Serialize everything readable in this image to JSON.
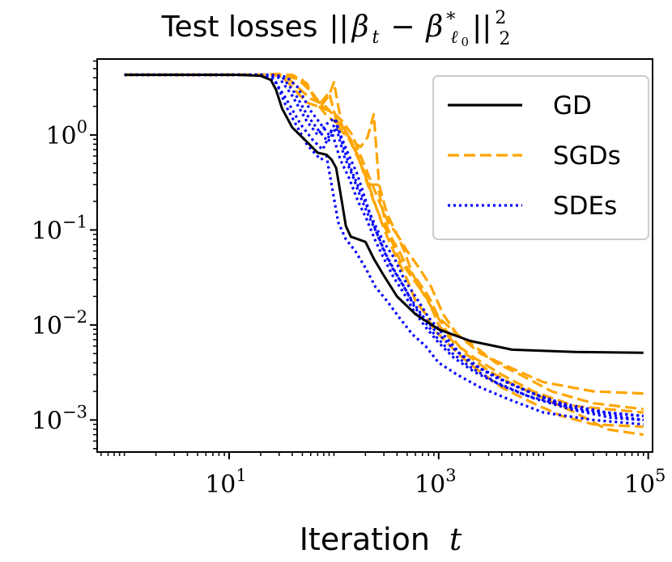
{
  "chart_data": {
    "type": "line",
    "title": "Test losses ||β_t − β*_ℓ0||²₂",
    "title_text": "Test losses",
    "title_math": {
      "beta": "β",
      "t": "t",
      "minus": "−",
      "star": "*",
      "ell": "ℓ",
      "zero": "0",
      "two": "2",
      "bars": "||"
    },
    "xlabel": "Iteration",
    "xlabel_var": "t",
    "ylabel": "",
    "xscale": "log",
    "yscale": "log",
    "xlim": [
      0.55,
      110000
    ],
    "ylim": [
      0.00046,
      6.3
    ],
    "x_ticks": [
      {
        "value": 10,
        "base": "10",
        "exp": "1"
      },
      {
        "value": 1000,
        "base": "10",
        "exp": "3"
      },
      {
        "value": 100000,
        "base": "10",
        "exp": "5"
      }
    ],
    "y_ticks": [
      {
        "value": 1,
        "base": "10",
        "exp": "0"
      },
      {
        "value": 0.1,
        "base": "10",
        "exp": "−1"
      },
      {
        "value": 0.01,
        "base": "10",
        "exp": "−2"
      },
      {
        "value": 0.001,
        "base": "10",
        "exp": "−3"
      }
    ],
    "legend": [
      {
        "label": "GD",
        "color": "#000000",
        "style": "solid"
      },
      {
        "label": "SGDs",
        "color": "#ffa500",
        "style": "dashed"
      },
      {
        "label": "SDEs",
        "color": "#0000ff",
        "style": "dotted"
      }
    ],
    "legend_position": "top-right",
    "series": [
      {
        "name": "GD",
        "group": "GD",
        "color": "#000000",
        "style": "solid",
        "x": [
          1,
          12,
          20,
          25,
          28,
          32,
          40,
          55,
          70,
          85,
          95,
          105,
          115,
          130,
          145,
          170,
          200,
          240,
          300,
          400,
          600,
          1000,
          2000,
          5000,
          20000,
          90000
        ],
        "y": [
          4.3,
          4.3,
          4.2,
          3.8,
          3.0,
          1.9,
          1.2,
          0.85,
          0.65,
          0.62,
          0.55,
          0.45,
          0.25,
          0.11,
          0.085,
          0.08,
          0.075,
          0.05,
          0.033,
          0.02,
          0.013,
          0.009,
          0.0068,
          0.0055,
          0.0052,
          0.0051
        ]
      },
      {
        "name": "SGD 1",
        "group": "SGDs",
        "color": "#ffa500",
        "style": "dashed",
        "x": [
          1,
          20,
          30,
          40,
          55,
          70,
          90,
          110,
          140,
          180,
          220,
          260,
          310,
          360,
          420,
          500,
          620,
          800,
          1000,
          1500,
          2500,
          5000,
          10000,
          30000,
          90000
        ],
        "y": [
          4.3,
          4.3,
          4.4,
          3.2,
          2.2,
          2.0,
          2.8,
          1.2,
          0.9,
          0.5,
          0.3,
          0.3,
          0.12,
          0.08,
          0.06,
          0.04,
          0.03,
          0.02,
          0.012,
          0.008,
          0.005,
          0.0035,
          0.0025,
          0.002,
          0.0019
        ]
      },
      {
        "name": "SGD 2",
        "group": "SGDs",
        "color": "#ffa500",
        "style": "dashed",
        "x": [
          1,
          25,
          35,
          45,
          60,
          80,
          100,
          125,
          150,
          180,
          210,
          240,
          270,
          320,
          400,
          500,
          650,
          850,
          1100,
          1500,
          2200,
          3500,
          6000,
          12000,
          30000,
          90000
        ],
        "y": [
          4.3,
          4.3,
          4.1,
          3.2,
          2.4,
          2.1,
          1.6,
          1.1,
          0.85,
          0.75,
          0.95,
          1.65,
          0.3,
          0.15,
          0.09,
          0.06,
          0.04,
          0.025,
          0.013,
          0.008,
          0.006,
          0.004,
          0.003,
          0.002,
          0.0015,
          0.0013
        ]
      },
      {
        "name": "SGD 3",
        "group": "SGDs",
        "color": "#ffa500",
        "style": "dashed",
        "x": [
          1,
          30,
          45,
          60,
          75,
          90,
          100,
          120,
          145,
          170,
          200,
          240,
          290,
          350,
          420,
          520,
          650,
          800,
          1000,
          1400,
          2200,
          4000,
          8000,
          20000,
          90000
        ],
        "y": [
          4.3,
          4.3,
          3.9,
          2.9,
          2.0,
          2.6,
          3.6,
          1.2,
          0.9,
          0.6,
          0.35,
          0.2,
          0.12,
          0.08,
          0.05,
          0.035,
          0.025,
          0.018,
          0.01,
          0.0065,
          0.0045,
          0.003,
          0.002,
          0.0014,
          0.0012
        ]
      },
      {
        "name": "SGD 4",
        "group": "SGDs",
        "color": "#ffa500",
        "style": "dashed",
        "x": [
          1,
          40,
          55,
          70,
          85,
          100,
          125,
          150,
          180,
          220,
          270,
          330,
          400,
          500,
          600,
          750,
          900,
          1200,
          1700,
          2500,
          4000,
          8000,
          15000,
          30000,
          90000
        ],
        "y": [
          4.3,
          4.3,
          3.5,
          2.1,
          1.6,
          1.4,
          1.2,
          0.8,
          0.5,
          0.28,
          0.14,
          0.08,
          0.05,
          0.03,
          0.018,
          0.013,
          0.009,
          0.0065,
          0.0045,
          0.0032,
          0.0022,
          0.0015,
          0.0011,
          0.0009,
          0.00085
        ]
      },
      {
        "name": "SGD 5",
        "group": "SGDs",
        "color": "#ffa500",
        "style": "dashed",
        "x": [
          1,
          35,
          50,
          65,
          80,
          100,
          120,
          150,
          180,
          220,
          270,
          330,
          400,
          470,
          560,
          700,
          900,
          1200,
          1800,
          3000,
          5000,
          10000,
          20000,
          40000,
          90000
        ],
        "y": [
          4.3,
          4.3,
          3.8,
          2.6,
          1.9,
          1.7,
          1.4,
          1.0,
          0.6,
          0.35,
          0.2,
          0.12,
          0.09,
          0.06,
          0.035,
          0.022,
          0.014,
          0.0085,
          0.005,
          0.0033,
          0.0024,
          0.0017,
          0.0012,
          0.0008,
          0.0007
        ]
      },
      {
        "name": "SDE 1",
        "group": "SDEs",
        "color": "#0000ff",
        "style": "dotted",
        "x": [
          1,
          15,
          22,
          28,
          35,
          45,
          55,
          65,
          75,
          85,
          95,
          110,
          130,
          160,
          200,
          250,
          320,
          420,
          560,
          750,
          1000,
          1500,
          2500,
          5000,
          10000,
          30000,
          90000
        ],
        "y": [
          4.3,
          4.3,
          4.2,
          3.6,
          2.0,
          1.2,
          0.8,
          0.65,
          0.55,
          0.6,
          0.3,
          0.12,
          0.08,
          0.06,
          0.04,
          0.025,
          0.018,
          0.012,
          0.008,
          0.006,
          0.004,
          0.003,
          0.0022,
          0.0016,
          0.0012,
          0.001,
          0.0009
        ]
      },
      {
        "name": "SDE 2",
        "group": "SDEs",
        "color": "#0000ff",
        "style": "dotted",
        "x": [
          1,
          20,
          30,
          40,
          55,
          70,
          85,
          100,
          120,
          140,
          165,
          190,
          220,
          260,
          310,
          380,
          470,
          600,
          800,
          1100,
          1600,
          2500,
          4500,
          9000,
          20000,
          50000,
          90000
        ],
        "y": [
          4.3,
          4.3,
          4.0,
          2.6,
          1.4,
          1.0,
          1.3,
          1.5,
          0.9,
          0.6,
          0.4,
          0.25,
          0.15,
          0.1,
          0.07,
          0.05,
          0.03,
          0.02,
          0.012,
          0.008,
          0.005,
          0.0035,
          0.0025,
          0.0018,
          0.0013,
          0.0011,
          0.001
        ]
      },
      {
        "name": "SDE 3",
        "group": "SDEs",
        "color": "#0000ff",
        "style": "dotted",
        "x": [
          1,
          25,
          35,
          45,
          60,
          75,
          90,
          105,
          125,
          150,
          180,
          210,
          250,
          300,
          360,
          440,
          540,
          680,
          900,
          1300,
          2000,
          3500,
          7000,
          15000,
          40000,
          90000
        ],
        "y": [
          4.3,
          4.3,
          4.1,
          3.2,
          1.8,
          1.3,
          1.0,
          1.4,
          0.7,
          0.4,
          0.25,
          0.17,
          0.1,
          0.06,
          0.04,
          0.028,
          0.019,
          0.013,
          0.009,
          0.006,
          0.004,
          0.0028,
          0.002,
          0.0015,
          0.0012,
          0.0011
        ]
      },
      {
        "name": "SDE 4",
        "group": "SDEs",
        "color": "#0000ff",
        "style": "dotted",
        "x": [
          1,
          18,
          26,
          35,
          48,
          62,
          78,
          95,
          115,
          140,
          170,
          205,
          245,
          300,
          370,
          460,
          580,
          750,
          1000,
          1400,
          2200,
          4000,
          8000,
          18000,
          45000,
          90000
        ],
        "y": [
          4.3,
          4.3,
          4.0,
          2.4,
          1.3,
          0.9,
          0.7,
          1.1,
          0.55,
          0.35,
          0.2,
          0.13,
          0.08,
          0.05,
          0.032,
          0.022,
          0.014,
          0.0095,
          0.0065,
          0.0045,
          0.0032,
          0.0023,
          0.0017,
          0.0013,
          0.00105,
          0.001
        ]
      },
      {
        "name": "SDE 5",
        "group": "SDEs",
        "color": "#0000ff",
        "style": "dotted",
        "x": [
          1,
          22,
          32,
          42,
          56,
          72,
          88,
          105,
          125,
          150,
          180,
          215,
          260,
          315,
          385,
          470,
          580,
          730,
          950,
          1300,
          2000,
          3500,
          7000,
          16000,
          40000,
          90000
        ],
        "y": [
          4.3,
          4.3,
          4.1,
          2.8,
          1.6,
          1.1,
          0.85,
          1.2,
          0.6,
          0.38,
          0.22,
          0.14,
          0.09,
          0.055,
          0.036,
          0.025,
          0.016,
          0.011,
          0.0075,
          0.0052,
          0.0036,
          0.0025,
          0.0018,
          0.0014,
          0.0012,
          0.0011
        ]
      }
    ]
  }
}
